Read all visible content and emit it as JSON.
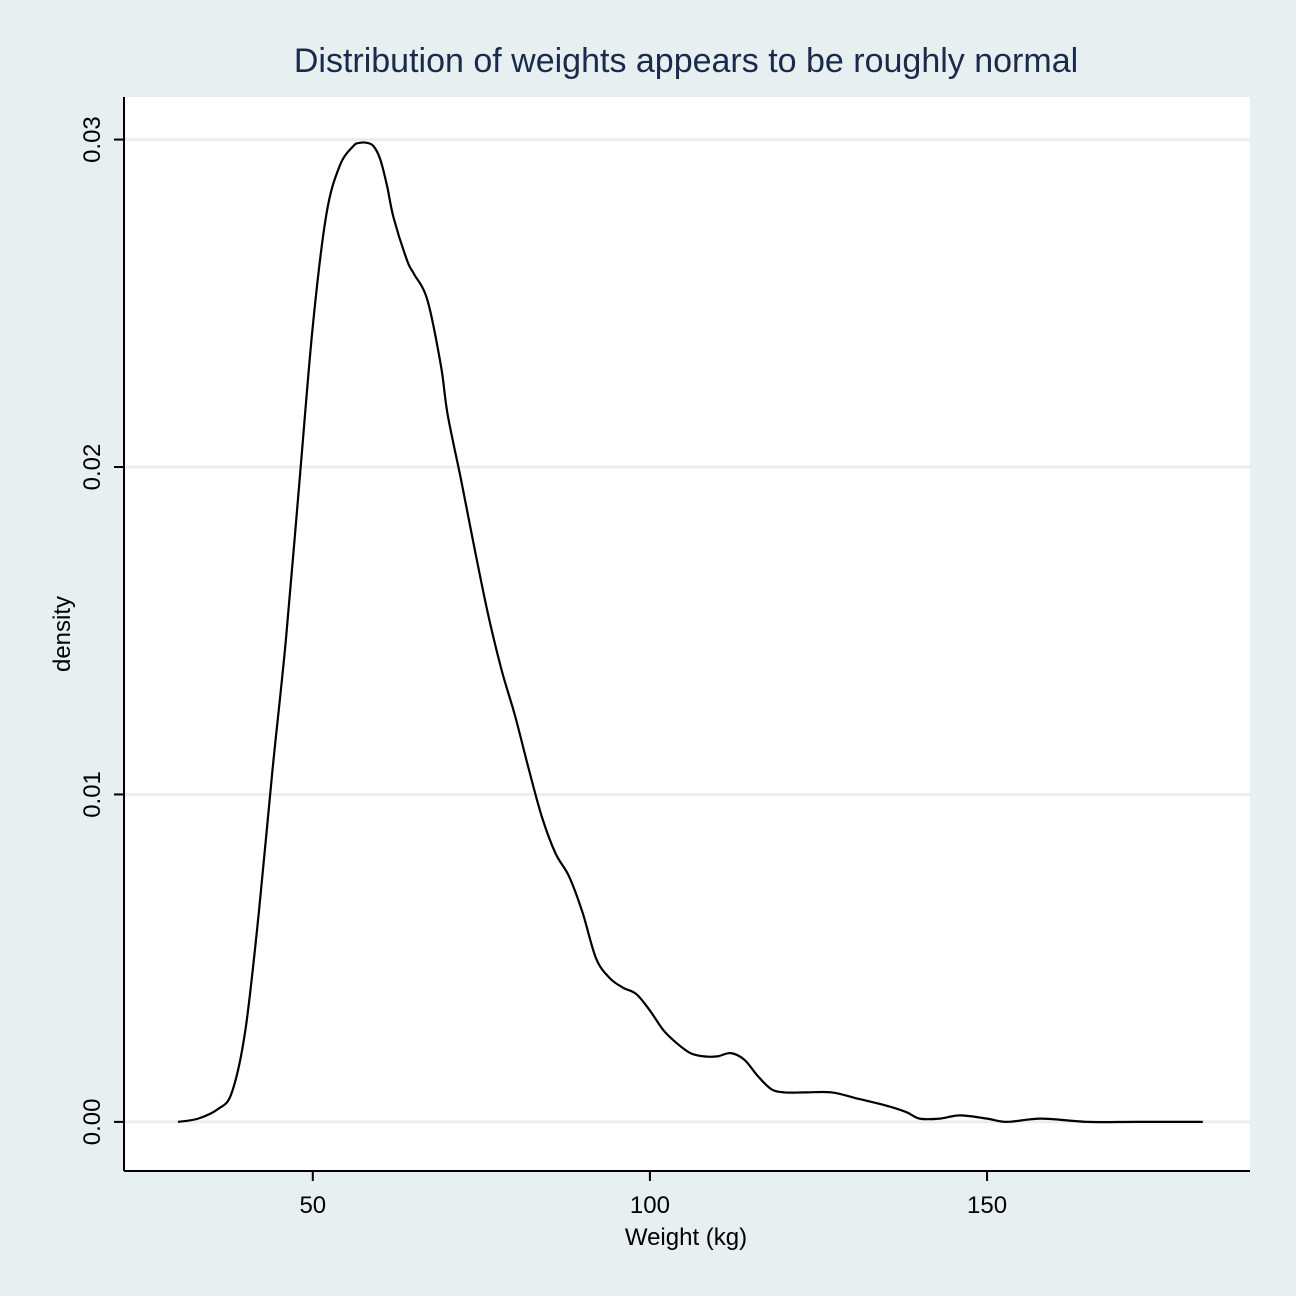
{
  "chart_data": {
    "type": "line",
    "title": "Distribution of weights appears to be roughly normal",
    "xlabel": "Weight (kg)",
    "ylabel": "density",
    "xlim": [
      22,
      189
    ],
    "ylim": [
      -0.0015,
      0.0313
    ],
    "x_ticks": [
      50,
      100,
      150
    ],
    "x_tick_labels": [
      "50",
      "100",
      "150"
    ],
    "y_ticks": [
      0,
      0.01,
      0.02,
      0.03
    ],
    "y_tick_labels": [
      "0.00",
      "0.01",
      "0.02",
      "0.03"
    ],
    "grid": "horizontal",
    "legend": "none",
    "colors": {
      "background": "#e8eff1",
      "plot": "#ffffff",
      "grid": "#e8eff1",
      "line": "#000000",
      "title": "#1a2a4a"
    },
    "series": [
      {
        "x": [
          30,
          33,
          36,
          38,
          40,
          42,
          44,
          46,
          48,
          50,
          52,
          54,
          56,
          57,
          58,
          59,
          60,
          61,
          62,
          64,
          65,
          67,
          69,
          70,
          72,
          74,
          76,
          78,
          80,
          82,
          84,
          86,
          88,
          90,
          92,
          94,
          96,
          98,
          100,
          102,
          104,
          106,
          108,
          110,
          112,
          114,
          116,
          118,
          120,
          123,
          127,
          131,
          135,
          138,
          140,
          143,
          146,
          150,
          153,
          158,
          165,
          172,
          182
        ],
        "y": [
          0.0,
          0.0001,
          0.0004,
          0.0009,
          0.0028,
          0.0064,
          0.0107,
          0.0147,
          0.0195,
          0.0243,
          0.0277,
          0.0292,
          0.0298,
          0.0299,
          0.0299,
          0.0298,
          0.0294,
          0.0286,
          0.0276,
          0.0263,
          0.0259,
          0.0251,
          0.0231,
          0.0216,
          0.0196,
          0.0175,
          0.0155,
          0.0138,
          0.0124,
          0.0108,
          0.0093,
          0.0082,
          0.0075,
          0.0064,
          0.005,
          0.0044,
          0.0041,
          0.0039,
          0.0034,
          0.0028,
          0.0024,
          0.0021,
          0.002,
          0.002,
          0.0021,
          0.0019,
          0.0014,
          0.001,
          0.0009,
          0.0009,
          0.0009,
          0.0007,
          0.0005,
          0.0003,
          0.0001,
          0.0001,
          0.0002,
          0.0001,
          0.0,
          0.0001,
          0.0,
          0.0,
          0.0
        ]
      }
    ]
  }
}
